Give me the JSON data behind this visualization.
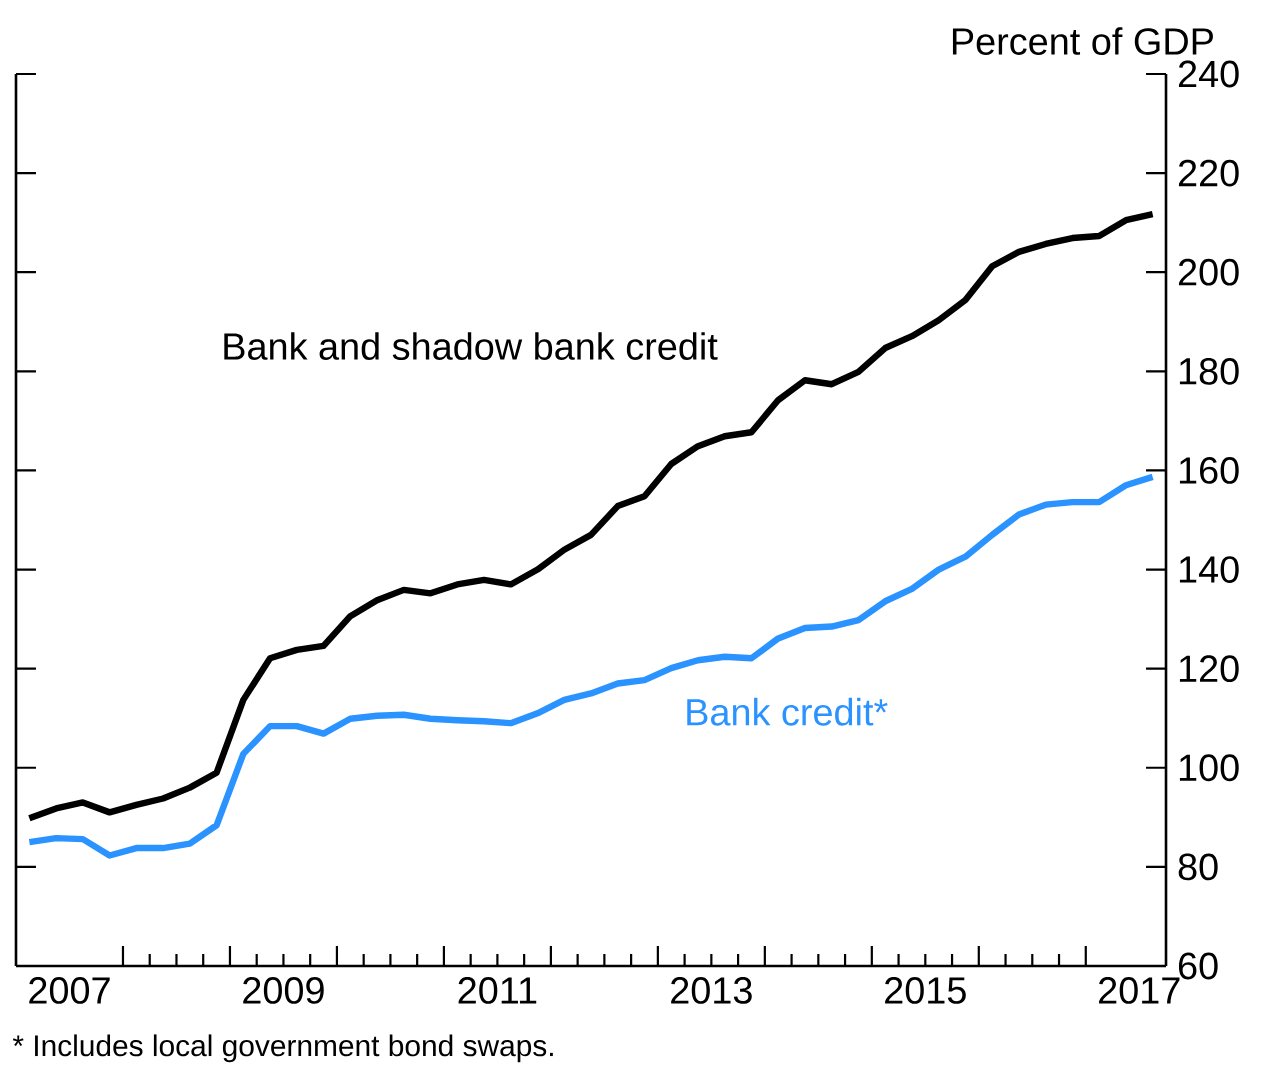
{
  "chart_data": {
    "type": "line",
    "ylabel": "Percent of GDP",
    "x": [
      2007.125,
      2007.375,
      2007.625,
      2007.875,
      2008.125,
      2008.375,
      2008.625,
      2008.875,
      2009.125,
      2009.375,
      2009.625,
      2009.875,
      2010.125,
      2010.375,
      2010.625,
      2010.875,
      2011.125,
      2011.375,
      2011.625,
      2011.875,
      2012.125,
      2012.375,
      2012.625,
      2012.875,
      2013.125,
      2013.375,
      2013.625,
      2013.875,
      2014.125,
      2014.375,
      2014.625,
      2014.875,
      2015.125,
      2015.375,
      2015.625,
      2015.875,
      2016.125,
      2016.375,
      2016.625,
      2016.875,
      2017.125,
      2017.375,
      2017.625
    ],
    "series": [
      {
        "name": "Bank and shadow bank credit",
        "color": "#000000",
        "values": [
          89.8,
          91.8,
          93,
          91,
          92.5,
          93.8,
          96,
          99,
          113.7,
          122.1,
          123.8,
          124.6,
          130.6,
          133.8,
          135.9,
          135.2,
          137,
          137.9,
          137,
          140,
          144,
          147,
          152.8,
          154.8,
          161.3,
          164.9,
          166.9,
          167.7,
          174.2,
          178.2,
          177.4,
          179.9,
          184.7,
          187.1,
          190.3,
          194.4,
          201.2,
          204.1,
          205.7,
          206.9,
          207.3,
          210.5,
          211.7
        ]
      },
      {
        "name": "Bank credit*",
        "color": "#2b93ff",
        "values": [
          85,
          85.8,
          85.6,
          82.3,
          83.8,
          83.8,
          84.7,
          88.4,
          102.8,
          108.4,
          108.4,
          106.9,
          109.9,
          110.5,
          110.7,
          109.9,
          109.6,
          109.4,
          109,
          111,
          113.7,
          115,
          117,
          117.7,
          120.1,
          121.7,
          122.4,
          122.1,
          126.1,
          128.2,
          128.5,
          129.8,
          133.6,
          136.1,
          140,
          142.6,
          147,
          151.1,
          153.1,
          153.6,
          153.6,
          157,
          158.7
        ]
      }
    ],
    "xlim": [
      2007,
      2017.75
    ],
    "xticks": [
      {
        "value": 2007.5,
        "label": "2007"
      },
      {
        "value": 2008,
        "label": null
      },
      {
        "value": 2009,
        "label": null
      },
      {
        "value": 2009.5,
        "label": "2009"
      },
      {
        "value": 2010,
        "label": null
      },
      {
        "value": 2011,
        "label": null
      },
      {
        "value": 2011.5,
        "label": "2011"
      },
      {
        "value": 2012,
        "label": null
      },
      {
        "value": 2013,
        "label": null
      },
      {
        "value": 2013.5,
        "label": "2013"
      },
      {
        "value": 2014,
        "label": null
      },
      {
        "value": 2015,
        "label": null
      },
      {
        "value": 2015.5,
        "label": "2015"
      },
      {
        "value": 2016,
        "label": null
      },
      {
        "value": 2017,
        "label": null
      },
      {
        "value": 2017.5,
        "label": "2017"
      }
    ],
    "ylim": [
      60,
      240
    ],
    "yticks": [
      60,
      80,
      100,
      120,
      140,
      160,
      180,
      200,
      220,
      240
    ],
    "line_style": "solid",
    "marker": "none",
    "grid": false,
    "legend": false,
    "annotations": [
      "*  Includes local government bond swaps."
    ]
  }
}
